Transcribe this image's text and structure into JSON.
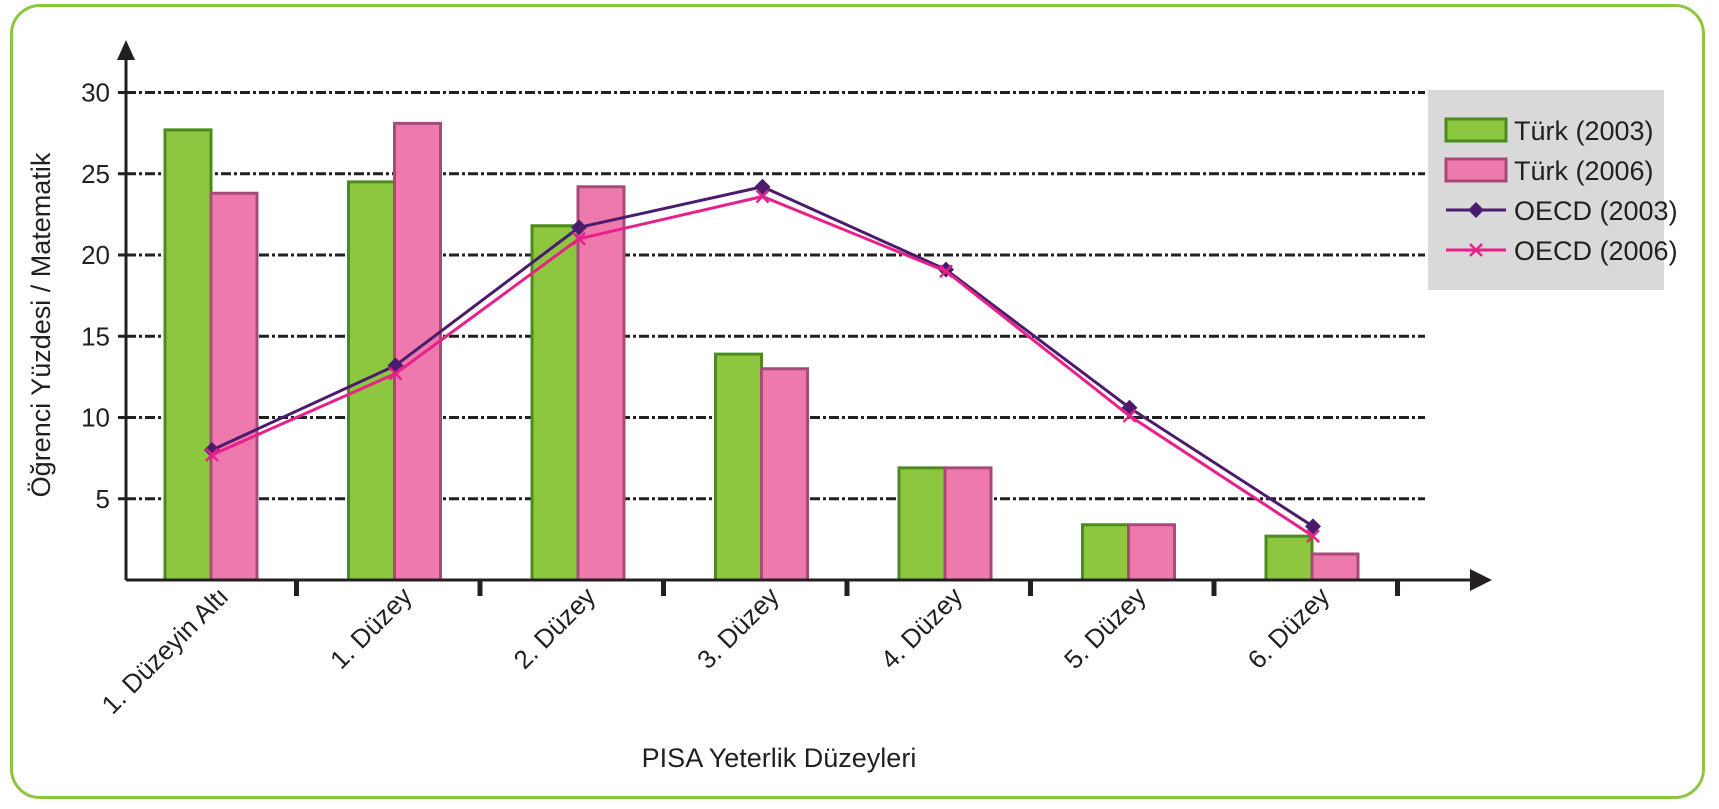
{
  "chart_data": {
    "type": "bar",
    "categories": [
      "1. Düzeyin Altı",
      "1. Düzey",
      "2. Düzey",
      "3. Düzey",
      "4. Düzey",
      "5. Düzey",
      "6. Düzey"
    ],
    "series": [
      {
        "name": "Türk (2003)",
        "kind": "bar",
        "color": "#8dc63f",
        "stroke": "#4d8a1f",
        "values": [
          27.7,
          24.5,
          21.8,
          13.9,
          6.9,
          3.4,
          2.7
        ]
      },
      {
        "name": "Türk (2006)",
        "kind": "bar",
        "color": "#ee7aad",
        "stroke": "#a84a78",
        "values": [
          23.8,
          28.1,
          24.2,
          13.0,
          6.9,
          3.4,
          1.6
        ]
      },
      {
        "name": "OECD (2003)",
        "kind": "line",
        "marker": "diamond",
        "color": "#4b1c6e",
        "values": [
          8.0,
          13.2,
          21.7,
          24.2,
          19.1,
          10.6,
          3.3
        ]
      },
      {
        "name": "OECD (2006)",
        "kind": "line",
        "marker": "x",
        "color": "#e8208a",
        "values": [
          7.7,
          12.7,
          21.0,
          23.6,
          19.0,
          10.1,
          2.7
        ]
      }
    ],
    "xlabel": "PISA Yeterlik Düzeyleri",
    "ylabel": "Öğrenci Yüzdesi / Matematik",
    "yticks": [
      "5",
      "10",
      "15",
      "20",
      "25",
      "30"
    ],
    "ylim": [
      0,
      30
    ],
    "grid": true,
    "legend": "top-right",
    "frame_color": "#8dc63f",
    "legend_bg": "#d9d9d9"
  }
}
